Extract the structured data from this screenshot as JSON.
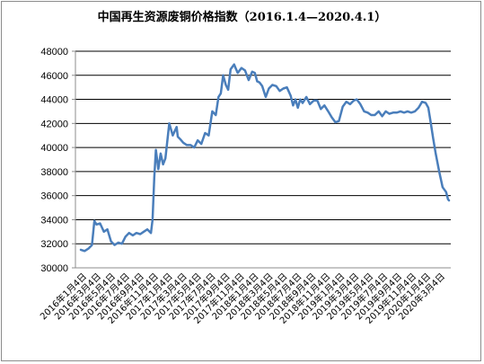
{
  "chart_data": {
    "type": "line",
    "title": "中国再生资源废铜价格指数（2016.1.4—2020.4.1）",
    "xlabel": "",
    "ylabel": "",
    "ylim": [
      30000,
      48000
    ],
    "yticks": [
      30000,
      32000,
      34000,
      36000,
      38000,
      40000,
      42000,
      44000,
      46000,
      48000
    ],
    "grid": true,
    "legend": "none",
    "color": "#4a7ebb",
    "x_tick_labels": [
      "2016年1月4日",
      "2016年3月4日",
      "2016年5月4日",
      "2016年7月4日",
      "2016年9月4日",
      "2016年11月4日",
      "2017年1月4日",
      "2017年3月4日",
      "2017年5月4日",
      "2017年7月4日",
      "2017年9月4日",
      "2017年11月4日",
      "2018年1月4日",
      "2018年3月4日",
      "2018年5月4日",
      "2018年7月4日",
      "2018年9月4日",
      "2018年11月4日",
      "2019年1月4日",
      "2019年3月4日",
      "2019年5月4日",
      "2019年7月4日",
      "2019年9月4日",
      "2019年11月4日",
      "2020年1月4日",
      "2020年3月4日"
    ],
    "series": [
      {
        "x": [
          "2016-01-04",
          "2016-01-20",
          "2016-02-05",
          "2016-02-20",
          "2016-03-01",
          "2016-03-10",
          "2016-03-25",
          "2016-04-10",
          "2016-04-25",
          "2016-05-10",
          "2016-05-25",
          "2016-06-10",
          "2016-06-25",
          "2016-07-10",
          "2016-07-25",
          "2016-08-10",
          "2016-08-25",
          "2016-09-10",
          "2016-09-25",
          "2016-10-10",
          "2016-10-25",
          "2016-11-01",
          "2016-11-08",
          "2016-11-15",
          "2016-11-25",
          "2016-12-05",
          "2016-12-15",
          "2016-12-25",
          "2017-01-10",
          "2017-01-25",
          "2017-02-10",
          "2017-02-15",
          "2017-02-25",
          "2017-03-10",
          "2017-03-25",
          "2017-04-10",
          "2017-04-25",
          "2017-05-10",
          "2017-05-25",
          "2017-06-10",
          "2017-06-25",
          "2017-07-10",
          "2017-07-25",
          "2017-08-05",
          "2017-08-15",
          "2017-08-25",
          "2017-09-05",
          "2017-09-15",
          "2017-09-25",
          "2017-10-10",
          "2017-10-25",
          "2017-11-10",
          "2017-11-25",
          "2017-12-10",
          "2017-12-25",
          "2018-01-05",
          "2018-01-15",
          "2018-01-25",
          "2018-02-05",
          "2018-02-20",
          "2018-03-05",
          "2018-03-20",
          "2018-04-05",
          "2018-04-20",
          "2018-05-05",
          "2018-05-20",
          "2018-06-05",
          "2018-06-15",
          "2018-06-25",
          "2018-07-05",
          "2018-07-15",
          "2018-07-25",
          "2018-08-10",
          "2018-08-25",
          "2018-09-10",
          "2018-09-25",
          "2018-10-10",
          "2018-10-25",
          "2018-11-10",
          "2018-11-25",
          "2018-12-10",
          "2018-12-25",
          "2019-01-10",
          "2019-01-25",
          "2019-02-10",
          "2019-02-25",
          "2019-03-10",
          "2019-03-25",
          "2019-04-10",
          "2019-04-25",
          "2019-05-10",
          "2019-05-25",
          "2019-06-10",
          "2019-06-25",
          "2019-07-10",
          "2019-07-25",
          "2019-08-10",
          "2019-08-25",
          "2019-09-10",
          "2019-09-25",
          "2019-10-10",
          "2019-10-25",
          "2019-11-10",
          "2019-11-25",
          "2019-12-10",
          "2019-12-25",
          "2020-01-05",
          "2020-01-15",
          "2020-01-25",
          "2020-02-05",
          "2020-02-20",
          "2020-03-05",
          "2020-03-20",
          "2020-03-28",
          "2020-04-01"
        ],
        "values": [
          31500,
          31400,
          31600,
          31900,
          33900,
          33600,
          33700,
          33000,
          33200,
          32200,
          31900,
          32100,
          32000,
          32600,
          32900,
          32700,
          32900,
          32800,
          33000,
          33200,
          32900,
          34000,
          37500,
          39800,
          38200,
          39500,
          38600,
          39100,
          42000,
          41000,
          41700,
          40900,
          40700,
          40400,
          40200,
          40200,
          40000,
          40600,
          40300,
          41200,
          41000,
          43000,
          42700,
          44200,
          44500,
          46000,
          45200,
          44800,
          46500,
          46900,
          46200,
          46600,
          46400,
          45600,
          46300,
          46200,
          45500,
          45400,
          45100,
          44200,
          44900,
          45200,
          45100,
          44700,
          44900,
          45000,
          44300,
          43500,
          44000,
          43300,
          44000,
          43700,
          44200,
          43600,
          43900,
          43900,
          43200,
          43500,
          43000,
          42500,
          42100,
          42200,
          43400,
          43800,
          43600,
          43900,
          44000,
          43600,
          43000,
          42900,
          42700,
          42700,
          43000,
          42600,
          43000,
          42800,
          42900,
          42900,
          43000,
          42900,
          43000,
          42900,
          43000,
          43300,
          43800,
          43700,
          43300,
          42100,
          40800,
          39500,
          38000,
          36700,
          36300,
          35700,
          35600
        ]
      }
    ]
  }
}
